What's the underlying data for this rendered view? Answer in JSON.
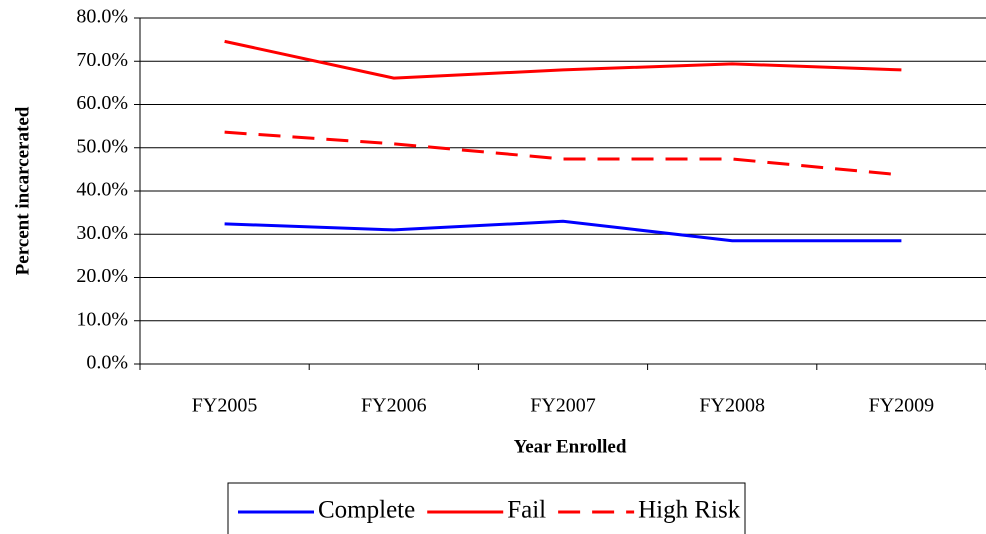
{
  "chart_data": {
    "type": "line",
    "x_label": "Year Enrolled",
    "y_label": "Percent incarcerated",
    "categories": [
      "FY2005",
      "FY2006",
      "FY2007",
      "FY2008",
      "FY2009"
    ],
    "series": [
      {
        "name": "Complete",
        "color": "#0000ff",
        "style": "solid",
        "values": [
          32.4,
          31.0,
          33.0,
          28.5,
          28.5
        ]
      },
      {
        "name": "Fail",
        "color": "#ff0000",
        "style": "solid",
        "values": [
          74.6,
          66.1,
          68.0,
          69.4,
          68.0
        ]
      },
      {
        "name": "High Risk",
        "color": "#ff0000",
        "style": "dashed",
        "values": [
          53.6,
          50.9,
          47.4,
          47.4,
          43.7
        ]
      }
    ],
    "ylim": [
      0,
      80
    ],
    "yticks": [
      {
        "value": 0,
        "label": "0.0%"
      },
      {
        "value": 10,
        "label": "10.0%"
      },
      {
        "value": 20,
        "label": "20.0%"
      },
      {
        "value": 30,
        "label": "30.0%"
      },
      {
        "value": 40,
        "label": "40.0%"
      },
      {
        "value": 50,
        "label": "50.0%"
      },
      {
        "value": 60,
        "label": "60.0%"
      },
      {
        "value": 70,
        "label": "70.0%"
      },
      {
        "value": 80,
        "label": "80.0%"
      }
    ],
    "grid": true,
    "legend": "bottom"
  }
}
